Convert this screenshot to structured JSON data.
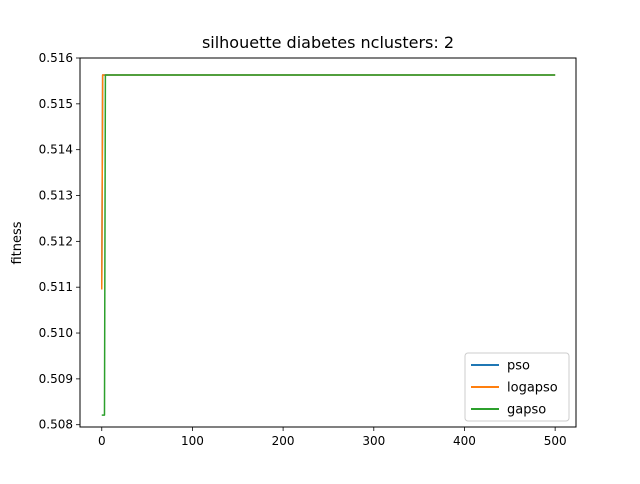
{
  "chart_data": {
    "type": "line",
    "title": "silhouette diabetes nclusters: 2",
    "xlabel": "",
    "ylabel": "fitness",
    "xlim": [
      -24,
      523
    ],
    "ylim": [
      0.50795,
      0.516
    ],
    "xticks": [
      0,
      100,
      200,
      300,
      400,
      500
    ],
    "xtick_labels": [
      "0",
      "100",
      "200",
      "300",
      "400",
      "500"
    ],
    "yticks": [
      0.508,
      0.509,
      0.51,
      0.511,
      0.512,
      0.513,
      0.514,
      0.515,
      0.516
    ],
    "ytick_labels": [
      "0.508",
      "0.509",
      "0.510",
      "0.511",
      "0.512",
      "0.513",
      "0.514",
      "0.515",
      "0.516"
    ],
    "grid": false,
    "legend_position": "lower-right",
    "series": [
      {
        "name": "pso",
        "color": "#1f77b4",
        "x": [
          0,
          1,
          500
        ],
        "y": [
          0.51095,
          0.51563,
          0.51563
        ]
      },
      {
        "name": "logapso",
        "color": "#ff7f0e",
        "x": [
          0,
          1,
          2,
          500
        ],
        "y": [
          0.51095,
          0.51563,
          0.51563,
          0.51563
        ]
      },
      {
        "name": "gapso",
        "color": "#2ca02c",
        "x": [
          0,
          3,
          4,
          500
        ],
        "y": [
          0.50821,
          0.50821,
          0.51563,
          0.51563
        ]
      }
    ]
  }
}
